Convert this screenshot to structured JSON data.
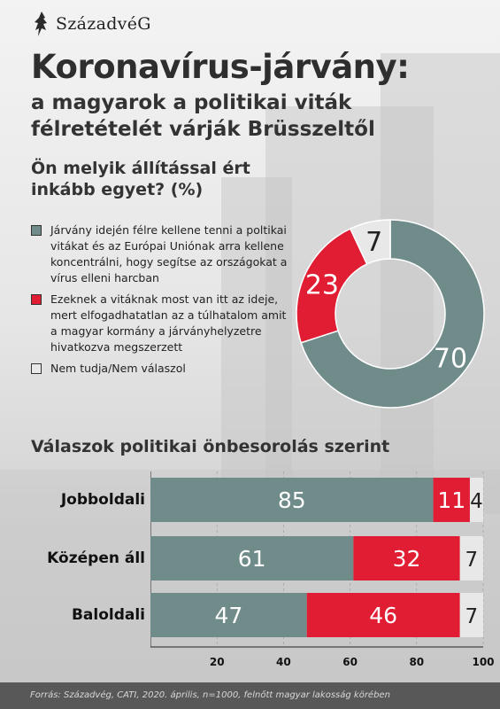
{
  "brand": {
    "name": "SzázadvéG",
    "logo_icon": "lion-logo-icon"
  },
  "header": {
    "title": "Koronavírus-járvány:",
    "subtitle": "a magyarok a politikai viták félretételét várják Brüsszeltől",
    "question": "Ön melyik állítással ért inkább egyet? (%)"
  },
  "colors": {
    "gray": "#6f8b8a",
    "red": "#e01d33",
    "light": "#e8e8e8",
    "text_dark": "#111111"
  },
  "legend": [
    {
      "label": "Járvány idején félre kellene tenni a poltikai vitákat és az Európai Uniónak arra kellene koncentrálni, hogy segítse az országokat a vírus elleni harcban",
      "color": "#6f8b8a"
    },
    {
      "label": "Ezeknek a vitáknak most van itt az ideje, mert elfogadhatatlan az a túlhatalom amit a magyar kormány a járványhelyzetre hivatkozva megszerzett",
      "color": "#e01d33"
    },
    {
      "label": "Nem tudja/Nem válaszol",
      "color": "#e8e8e8"
    }
  ],
  "section": {
    "title": "Válaszok politikai önbesorolás szerint"
  },
  "source": "Forrás: Századvég, CATI, 2020. április, n=1000, felnőtt magyar lakosság körében",
  "chart_data": [
    {
      "type": "pie",
      "donut": true,
      "categories": [
        "Járvány idején félre kellene tenni a poltikai vitákat...",
        "Ezeknek a vitáknak most van itt az ideje...",
        "Nem tudja/Nem válaszol"
      ],
      "values": [
        70,
        23,
        7
      ],
      "labels": [
        "70",
        "23",
        "7"
      ],
      "colors": [
        "#6f8b8a",
        "#e01d33",
        "#e8e8e8"
      ]
    },
    {
      "type": "bar",
      "orientation": "horizontal",
      "stacked": true,
      "title": "Válaszok politikai önbesorolás szerint",
      "categories": [
        "Jobboldali",
        "Középen áll",
        "Baloldali"
      ],
      "series": [
        {
          "values": [
            85,
            61,
            47
          ],
          "labels": [
            "85",
            "61",
            "47"
          ],
          "color": "#6f8b8a"
        },
        {
          "values": [
            11,
            32,
            46
          ],
          "labels": [
            "11",
            "32",
            "46"
          ],
          "color": "#e01d33"
        },
        {
          "values": [
            4,
            7,
            7
          ],
          "labels": [
            "4",
            "7",
            "7"
          ],
          "color": "#e8e8e8"
        }
      ],
      "xlim": [
        0,
        100
      ],
      "xticks": [
        20,
        40,
        60,
        80,
        100
      ],
      "xtick_labels": [
        "20",
        "40",
        "60",
        "80",
        "100"
      ],
      "grid": true
    }
  ]
}
